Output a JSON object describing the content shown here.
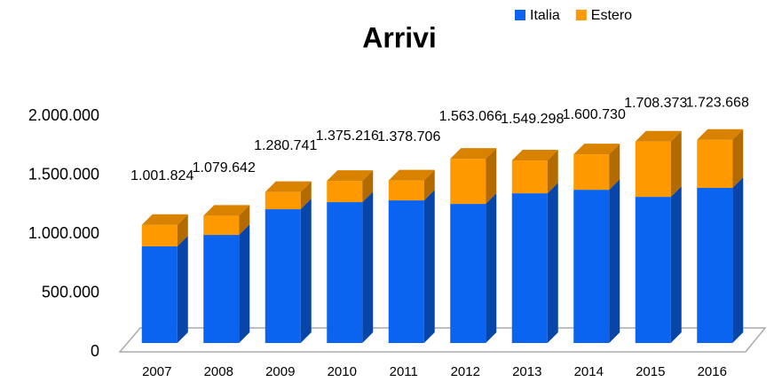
{
  "chart_data": {
    "type": "bar3d_stacked",
    "title": "Arrivi",
    "categories": [
      "2007",
      "2008",
      "2009",
      "2010",
      "2011",
      "2012",
      "2013",
      "2014",
      "2015",
      "2016"
    ],
    "series": [
      {
        "name": "Italia",
        "color": "#0a64f0",
        "values": [
          820000,
          917000,
          1135000,
          1195000,
          1210000,
          1180000,
          1270000,
          1300000,
          1240000,
          1316000
        ]
      },
      {
        "name": "Estero",
        "color": "#ff9900",
        "values": [
          181824,
          162642,
          145741,
          180216,
          168706,
          383066,
          279298,
          300730,
          468373,
          407668
        ]
      }
    ],
    "totals": [
      1001824,
      1079642,
      1280741,
      1375216,
      1378706,
      1563066,
      1549298,
      1600730,
      1708373,
      1723668
    ],
    "total_labels": [
      "1.001.824",
      "1.079.642",
      "1.280.741",
      "1.375.216",
      "1.378.706",
      "1.563.066",
      "1.549.298",
      "1.600.730",
      "1.708.373",
      "1.723.668"
    ],
    "ylim": [
      0,
      2000000
    ],
    "yticks": [
      0,
      {
        "value": 500000,
        "label": "500.000"
      },
      {
        "value": 1000000,
        "label": "1.000.000"
      },
      {
        "value": 1500000,
        "label": "1.500.000"
      },
      {
        "value": 2000000,
        "label": "2.000.000"
      }
    ],
    "legend": "top-right"
  }
}
